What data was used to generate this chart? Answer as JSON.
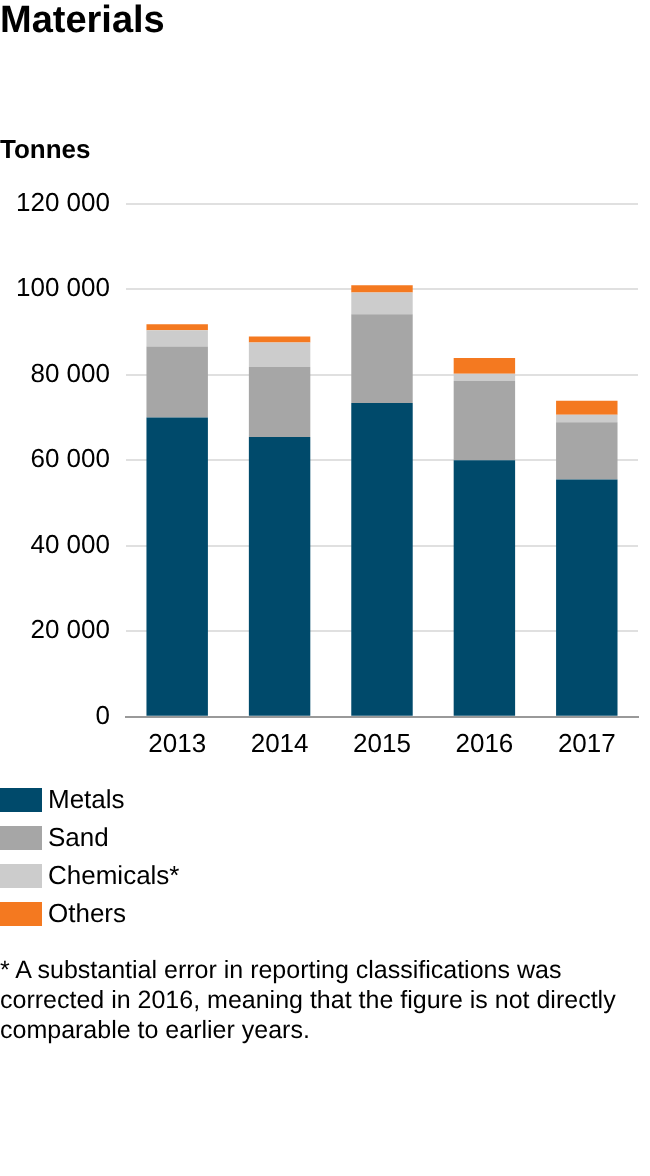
{
  "chart_data": {
    "type": "bar",
    "title": "Materials",
    "ylabel": "Tonnes",
    "stacked": true,
    "grid": "y",
    "legend": "bottom",
    "categories": [
      "2013",
      "2014",
      "2015",
      "2016",
      "2017"
    ],
    "series": [
      {
        "name": "Metals",
        "color": "#004a6b",
        "values": [
          70000,
          65400,
          73400,
          60000,
          55500
        ]
      },
      {
        "name": "Sand",
        "color": "#a6a6a6",
        "values": [
          16600,
          16400,
          20700,
          18500,
          13400
        ]
      },
      {
        "name": "Chemicals*",
        "color": "#cccccc",
        "values": [
          3800,
          5700,
          5100,
          1700,
          1700
        ]
      },
      {
        "name": "Others",
        "color": "#f47920",
        "values": [
          1400,
          1400,
          1700,
          3700,
          3300
        ]
      }
    ],
    "ylim": [
      0,
      120000
    ],
    "yticks": [
      {
        "value": 0,
        "label": "0"
      },
      {
        "value": 20000,
        "label": "20 000"
      },
      {
        "value": 40000,
        "label": "40 000"
      },
      {
        "value": 60000,
        "label": "60 000"
      },
      {
        "value": 80000,
        "label": "80 000"
      },
      {
        "value": 100000,
        "label": "100 000"
      },
      {
        "value": 120000,
        "label": "120 000"
      }
    ],
    "annotations": [
      "* A substantial error in reporting classifications was corrected in 2016, meaning that the figure is not directly comparable to earlier years."
    ]
  }
}
